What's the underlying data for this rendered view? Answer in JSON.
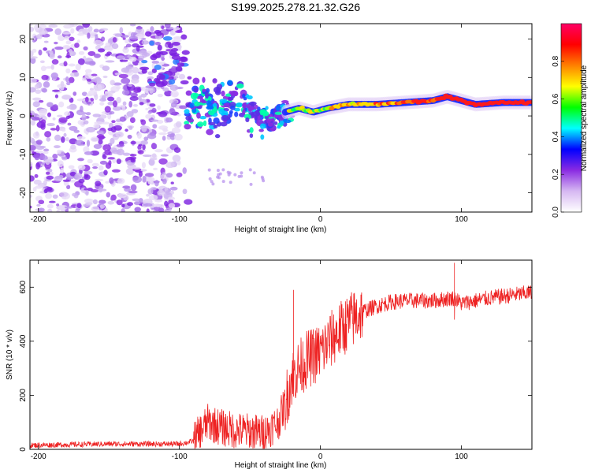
{
  "figure_title": "S199.2025.278.21.32.G26",
  "chart_data": [
    {
      "type": "heatmap",
      "title": "S199.2025.278.21.32.G26",
      "xlabel": "Height of straight line (km)",
      "ylabel": "Frequency (Hz)",
      "xlim": [
        -206,
        150
      ],
      "ylim": [
        -25,
        24
      ],
      "x_ticks": [
        -200,
        -100,
        0,
        100
      ],
      "y_ticks": [
        -20,
        -10,
        0,
        10,
        20
      ],
      "colorbar": {
        "label": "Normalized spectral amplitude",
        "range": [
          0,
          1
        ],
        "ticks": [
          0.0,
          0.2,
          0.4,
          0.6,
          0.8
        ],
        "colors": [
          "#ffffff",
          "#d6b8f2",
          "#8a2be2",
          "#0000ff",
          "#00ffff",
          "#00ff00",
          "#ffff00",
          "#ff8000",
          "#ff0000",
          "#ff0066"
        ]
      },
      "dominant_frequency_trend": {
        "x": [
          -95,
          -85,
          -75,
          -65,
          -55,
          -45,
          -35,
          -25,
          -15,
          -5,
          5,
          20,
          40,
          60,
          80,
          90,
          100,
          110,
          130,
          150
        ],
        "y": [
          2,
          3,
          2,
          4,
          3,
          1,
          -2,
          1,
          2,
          1,
          2,
          3,
          3,
          3.5,
          4,
          5,
          4,
          3,
          3.5,
          3.5
        ]
      },
      "noise_region_x": [
        -206,
        -100
      ]
    },
    {
      "type": "line",
      "xlabel": "Height of straight line (km)",
      "ylabel": "SNR (10 * v/v)",
      "xlim": [
        -206,
        150
      ],
      "ylim": [
        0,
        700
      ],
      "x_ticks": [
        -200,
        -100,
        0,
        100
      ],
      "y_ticks": [
        0,
        200,
        400,
        600
      ],
      "series": [
        {
          "name": "SNR",
          "color": "#ee2222",
          "trend_x": [
            -206,
            -150,
            -100,
            -90,
            -80,
            -70,
            -60,
            -50,
            -40,
            -30,
            -25,
            -20,
            -10,
            0,
            10,
            20,
            30,
            40,
            50,
            60,
            80,
            95,
            100,
            120,
            150
          ],
          "trend_y": [
            15,
            20,
            20,
            30,
            100,
            80,
            70,
            65,
            60,
            100,
            170,
            270,
            330,
            360,
            420,
            470,
            510,
            530,
            545,
            550,
            550,
            560,
            540,
            560,
            580
          ],
          "notable_peaks": [
            {
              "x": -19,
              "y": 590
            },
            {
              "x": 95,
              "y": 690
            }
          ]
        }
      ]
    }
  ]
}
